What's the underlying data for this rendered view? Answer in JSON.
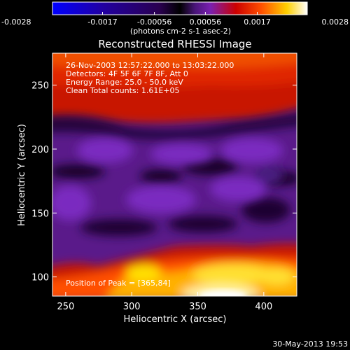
{
  "chart_data": {
    "type": "heatmap",
    "title": "Reconstructed RHESSI Image",
    "xlabel": "Heliocentric X (arcsec)",
    "ylabel": "Heliocentric Y (arcsec)",
    "xlim": [
      240,
      425
    ],
    "ylim": [
      85,
      275
    ],
    "x_ticks": [
      250,
      300,
      350,
      400
    ],
    "y_ticks": [
      100,
      150,
      200,
      250
    ],
    "info_lines": [
      "26-Nov-2003 12:57:22.000 to 13:03:22.000",
      "Detectors: 4F 5F 6F 7F 8F, Att 0",
      "Energy Range: 25.0 - 50.0 keV",
      "Clean     Total counts: 1.61E+05"
    ],
    "peak_label": "Position of Peak = [365,84]",
    "colorbar": {
      "min": -0.0028,
      "max": 0.0028,
      "tick_labels": [
        "-0.0028",
        "-0.0017",
        "-0.00056",
        "0.00056",
        "0.0017",
        "0.0028"
      ],
      "units_label": "(photons cm-2 s-1 asec-2)",
      "colors": [
        "#0000ff",
        "#2a00a0",
        "#3c0f64",
        "#000000",
        "#5a1a8a",
        "#7a1ab0",
        "#c80000",
        "#ff4000",
        "#ffc800",
        "#ffffff"
      ]
    },
    "grid": false,
    "legend": "none"
  },
  "footer": {
    "date": "30-May-2013 19:53"
  }
}
